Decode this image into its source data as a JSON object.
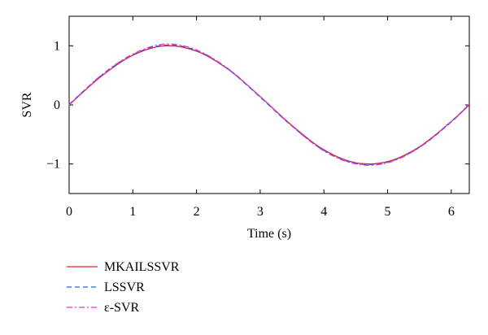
{
  "chart_data": {
    "type": "line",
    "title": "",
    "xlabel": "Time (s)",
    "ylabel": "SVR",
    "xlim": [
      0,
      6.283
    ],
    "ylim": [
      -1.5,
      1.5
    ],
    "xticks": [
      0,
      1,
      2,
      3,
      4,
      5,
      6
    ],
    "yticks": [
      -1,
      0,
      1
    ],
    "xtick_labels": [
      "0",
      "1",
      "2",
      "3",
      "4",
      "5",
      "6"
    ],
    "ytick_labels": [
      "−1",
      "0",
      "1"
    ],
    "grid": false,
    "legend_position": "below-left",
    "x": [
      0,
      0.5,
      1,
      1.5,
      2,
      2.5,
      3,
      3.5,
      4,
      4.5,
      5,
      5.5,
      6,
      6.283
    ],
    "series": [
      {
        "name": "MKAILSSVR",
        "color": "#e8202a",
        "dash": "solid",
        "values": [
          0,
          0.48,
          0.84,
          1.0,
          0.91,
          0.6,
          0.14,
          -0.35,
          -0.76,
          -0.98,
          -0.96,
          -0.71,
          -0.28,
          0
        ]
      },
      {
        "name": "LSSVR",
        "color": "#2f5be8",
        "dash": "dashed",
        "values": [
          0.01,
          0.49,
          0.85,
          1.01,
          0.92,
          0.6,
          0.13,
          -0.36,
          -0.77,
          -0.99,
          -0.97,
          -0.72,
          -0.29,
          0.01
        ]
      },
      {
        "name": "ε-SVR",
        "color": "#d63cd6",
        "dash": "dashdot",
        "values": [
          0.0,
          0.5,
          0.86,
          1.03,
          0.93,
          0.61,
          0.14,
          -0.36,
          -0.78,
          -1.0,
          -0.98,
          -0.72,
          -0.28,
          0.02
        ]
      }
    ]
  }
}
